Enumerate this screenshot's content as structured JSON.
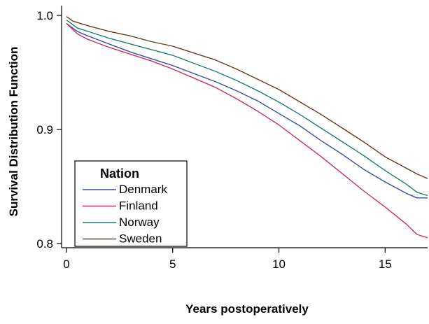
{
  "chart_data": {
    "type": "line",
    "xlabel": "Years postoperatively",
    "ylabel": "Survival Distribution Function",
    "xlim": [
      0,
      17
    ],
    "ylim": [
      0.8,
      1.0
    ],
    "x_ticks": [
      "0",
      "5",
      "10",
      "15"
    ],
    "y_ticks": [
      "0.8",
      "0.9",
      "1.0"
    ],
    "x_tick_values": [
      0,
      5,
      10,
      15
    ],
    "y_tick_values": [
      0.8,
      0.9,
      1.0
    ],
    "grid": false,
    "legend": {
      "title": "Nation",
      "position": "bottom-left"
    },
    "series": [
      {
        "name": "Denmark",
        "color": "#3a4fa8",
        "x": [
          0,
          0.5,
          1,
          2,
          3,
          4,
          5,
          6,
          7,
          8,
          9,
          10,
          11,
          12,
          13,
          14,
          15,
          16,
          16.5,
          17
        ],
        "y": [
          0.993,
          0.986,
          0.982,
          0.975,
          0.968,
          0.962,
          0.956,
          0.949,
          0.942,
          0.934,
          0.925,
          0.914,
          0.903,
          0.89,
          0.878,
          0.865,
          0.854,
          0.844,
          0.84,
          0.84
        ]
      },
      {
        "name": "Finland",
        "color": "#c8325a",
        "x": [
          0,
          0.5,
          1,
          2,
          3,
          4,
          5,
          6,
          7,
          8,
          9,
          10,
          11,
          12,
          13,
          14,
          15,
          16,
          16.5,
          17
        ],
        "y": [
          0.993,
          0.984,
          0.979,
          0.972,
          0.966,
          0.96,
          0.953,
          0.945,
          0.937,
          0.927,
          0.916,
          0.904,
          0.89,
          0.876,
          0.861,
          0.846,
          0.832,
          0.817,
          0.808,
          0.805
        ]
      },
      {
        "name": "Norway",
        "color": "#1a8070",
        "x": [
          0,
          0.5,
          1,
          2,
          3,
          4,
          5,
          6,
          7,
          8,
          9,
          10,
          11,
          12,
          13,
          14,
          15,
          16,
          16.5,
          17
        ],
        "y": [
          0.996,
          0.989,
          0.986,
          0.98,
          0.975,
          0.97,
          0.965,
          0.958,
          0.951,
          0.943,
          0.934,
          0.924,
          0.913,
          0.901,
          0.889,
          0.877,
          0.864,
          0.852,
          0.845,
          0.842
        ]
      },
      {
        "name": "Sweden",
        "color": "#6a3a22",
        "x": [
          0,
          0.3,
          1,
          2,
          3,
          4,
          5,
          6,
          7,
          8,
          9,
          10,
          11,
          12,
          13,
          14,
          15,
          16,
          16.5,
          17
        ],
        "y": [
          0.999,
          0.995,
          0.991,
          0.986,
          0.982,
          0.977,
          0.973,
          0.967,
          0.961,
          0.953,
          0.944,
          0.935,
          0.924,
          0.913,
          0.901,
          0.889,
          0.876,
          0.866,
          0.861,
          0.857
        ]
      }
    ]
  }
}
